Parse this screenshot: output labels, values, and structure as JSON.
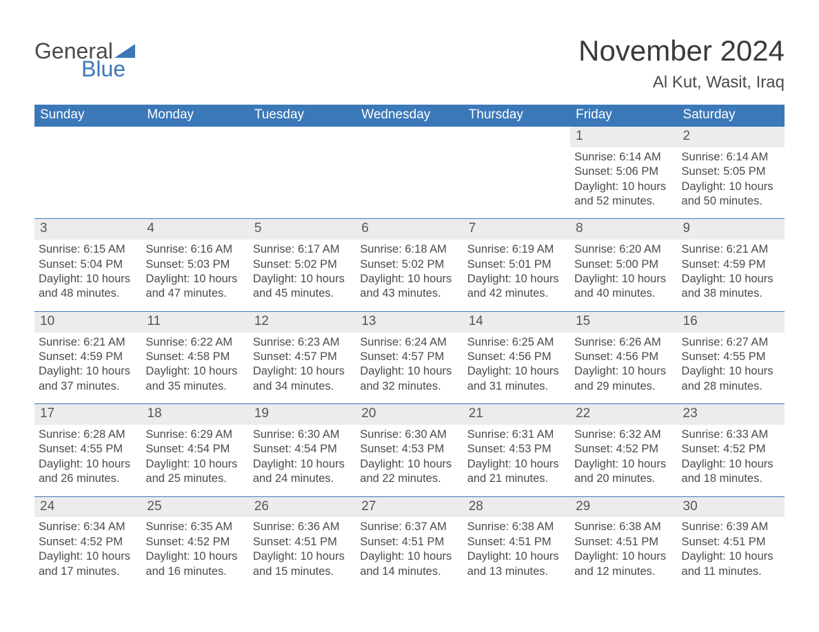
{
  "brand": {
    "word1": "General",
    "word2": "Blue"
  },
  "title": "November 2024",
  "location": "Al Kut, Wasit, Iraq",
  "colors": {
    "accent": "#3b78b8",
    "header_text": "#ffffff",
    "daynum_bg": "#ececec",
    "body_text": "#4a4a4a",
    "page_bg": "#ffffff"
  },
  "layout": {
    "type": "calendar",
    "columns": 7,
    "rows": 5,
    "first_day_column_index": 5
  },
  "weekdays": [
    "Sunday",
    "Monday",
    "Tuesday",
    "Wednesday",
    "Thursday",
    "Friday",
    "Saturday"
  ],
  "weeks": [
    [
      null,
      null,
      null,
      null,
      null,
      {
        "n": "1",
        "sunrise": "Sunrise: 6:14 AM",
        "sunset": "Sunset: 5:06 PM",
        "d1": "Daylight: 10 hours",
        "d2": "and 52 minutes."
      },
      {
        "n": "2",
        "sunrise": "Sunrise: 6:14 AM",
        "sunset": "Sunset: 5:05 PM",
        "d1": "Daylight: 10 hours",
        "d2": "and 50 minutes."
      }
    ],
    [
      {
        "n": "3",
        "sunrise": "Sunrise: 6:15 AM",
        "sunset": "Sunset: 5:04 PM",
        "d1": "Daylight: 10 hours",
        "d2": "and 48 minutes."
      },
      {
        "n": "4",
        "sunrise": "Sunrise: 6:16 AM",
        "sunset": "Sunset: 5:03 PM",
        "d1": "Daylight: 10 hours",
        "d2": "and 47 minutes."
      },
      {
        "n": "5",
        "sunrise": "Sunrise: 6:17 AM",
        "sunset": "Sunset: 5:02 PM",
        "d1": "Daylight: 10 hours",
        "d2": "and 45 minutes."
      },
      {
        "n": "6",
        "sunrise": "Sunrise: 6:18 AM",
        "sunset": "Sunset: 5:02 PM",
        "d1": "Daylight: 10 hours",
        "d2": "and 43 minutes."
      },
      {
        "n": "7",
        "sunrise": "Sunrise: 6:19 AM",
        "sunset": "Sunset: 5:01 PM",
        "d1": "Daylight: 10 hours",
        "d2": "and 42 minutes."
      },
      {
        "n": "8",
        "sunrise": "Sunrise: 6:20 AM",
        "sunset": "Sunset: 5:00 PM",
        "d1": "Daylight: 10 hours",
        "d2": "and 40 minutes."
      },
      {
        "n": "9",
        "sunrise": "Sunrise: 6:21 AM",
        "sunset": "Sunset: 4:59 PM",
        "d1": "Daylight: 10 hours",
        "d2": "and 38 minutes."
      }
    ],
    [
      {
        "n": "10",
        "sunrise": "Sunrise: 6:21 AM",
        "sunset": "Sunset: 4:59 PM",
        "d1": "Daylight: 10 hours",
        "d2": "and 37 minutes."
      },
      {
        "n": "11",
        "sunrise": "Sunrise: 6:22 AM",
        "sunset": "Sunset: 4:58 PM",
        "d1": "Daylight: 10 hours",
        "d2": "and 35 minutes."
      },
      {
        "n": "12",
        "sunrise": "Sunrise: 6:23 AM",
        "sunset": "Sunset: 4:57 PM",
        "d1": "Daylight: 10 hours",
        "d2": "and 34 minutes."
      },
      {
        "n": "13",
        "sunrise": "Sunrise: 6:24 AM",
        "sunset": "Sunset: 4:57 PM",
        "d1": "Daylight: 10 hours",
        "d2": "and 32 minutes."
      },
      {
        "n": "14",
        "sunrise": "Sunrise: 6:25 AM",
        "sunset": "Sunset: 4:56 PM",
        "d1": "Daylight: 10 hours",
        "d2": "and 31 minutes."
      },
      {
        "n": "15",
        "sunrise": "Sunrise: 6:26 AM",
        "sunset": "Sunset: 4:56 PM",
        "d1": "Daylight: 10 hours",
        "d2": "and 29 minutes."
      },
      {
        "n": "16",
        "sunrise": "Sunrise: 6:27 AM",
        "sunset": "Sunset: 4:55 PM",
        "d1": "Daylight: 10 hours",
        "d2": "and 28 minutes."
      }
    ],
    [
      {
        "n": "17",
        "sunrise": "Sunrise: 6:28 AM",
        "sunset": "Sunset: 4:55 PM",
        "d1": "Daylight: 10 hours",
        "d2": "and 26 minutes."
      },
      {
        "n": "18",
        "sunrise": "Sunrise: 6:29 AM",
        "sunset": "Sunset: 4:54 PM",
        "d1": "Daylight: 10 hours",
        "d2": "and 25 minutes."
      },
      {
        "n": "19",
        "sunrise": "Sunrise: 6:30 AM",
        "sunset": "Sunset: 4:54 PM",
        "d1": "Daylight: 10 hours",
        "d2": "and 24 minutes."
      },
      {
        "n": "20",
        "sunrise": "Sunrise: 6:30 AM",
        "sunset": "Sunset: 4:53 PM",
        "d1": "Daylight: 10 hours",
        "d2": "and 22 minutes."
      },
      {
        "n": "21",
        "sunrise": "Sunrise: 6:31 AM",
        "sunset": "Sunset: 4:53 PM",
        "d1": "Daylight: 10 hours",
        "d2": "and 21 minutes."
      },
      {
        "n": "22",
        "sunrise": "Sunrise: 6:32 AM",
        "sunset": "Sunset: 4:52 PM",
        "d1": "Daylight: 10 hours",
        "d2": "and 20 minutes."
      },
      {
        "n": "23",
        "sunrise": "Sunrise: 6:33 AM",
        "sunset": "Sunset: 4:52 PM",
        "d1": "Daylight: 10 hours",
        "d2": "and 18 minutes."
      }
    ],
    [
      {
        "n": "24",
        "sunrise": "Sunrise: 6:34 AM",
        "sunset": "Sunset: 4:52 PM",
        "d1": "Daylight: 10 hours",
        "d2": "and 17 minutes."
      },
      {
        "n": "25",
        "sunrise": "Sunrise: 6:35 AM",
        "sunset": "Sunset: 4:52 PM",
        "d1": "Daylight: 10 hours",
        "d2": "and 16 minutes."
      },
      {
        "n": "26",
        "sunrise": "Sunrise: 6:36 AM",
        "sunset": "Sunset: 4:51 PM",
        "d1": "Daylight: 10 hours",
        "d2": "and 15 minutes."
      },
      {
        "n": "27",
        "sunrise": "Sunrise: 6:37 AM",
        "sunset": "Sunset: 4:51 PM",
        "d1": "Daylight: 10 hours",
        "d2": "and 14 minutes."
      },
      {
        "n": "28",
        "sunrise": "Sunrise: 6:38 AM",
        "sunset": "Sunset: 4:51 PM",
        "d1": "Daylight: 10 hours",
        "d2": "and 13 minutes."
      },
      {
        "n": "29",
        "sunrise": "Sunrise: 6:38 AM",
        "sunset": "Sunset: 4:51 PM",
        "d1": "Daylight: 10 hours",
        "d2": "and 12 minutes."
      },
      {
        "n": "30",
        "sunrise": "Sunrise: 6:39 AM",
        "sunset": "Sunset: 4:51 PM",
        "d1": "Daylight: 10 hours",
        "d2": "and 11 minutes."
      }
    ]
  ]
}
